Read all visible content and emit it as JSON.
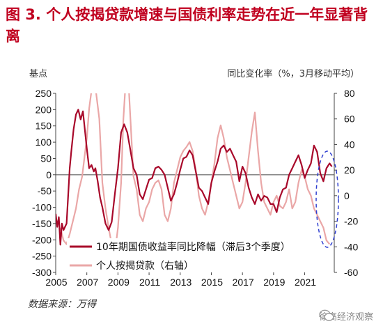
{
  "title": "图 3. 个人按揭贷款增速与国债利率走势在近一年显著背离",
  "source": "数据来源：万得",
  "watermark": "徐高经济观察",
  "watermark_icon": "wechat-icon",
  "colors": {
    "title": "#c0001f",
    "series_rate": "#a8082a",
    "series_loan": "#eaa7a7",
    "highlight": "#2f3fd0"
  },
  "chart_data": {
    "type": "line",
    "left_unit": "基点",
    "right_unit": "同比变化率（%，3月移动平均）",
    "x_ticks": [
      "2005",
      "2007",
      "2009",
      "2011",
      "2013",
      "2015",
      "2017",
      "2019",
      "2021"
    ],
    "xlim": [
      2005,
      2022.9
    ],
    "ylim_left": [
      -300,
      250
    ],
    "yticks_left": [
      250,
      200,
      150,
      100,
      50,
      0,
      -50,
      -100,
      -150,
      -200,
      -250,
      -300
    ],
    "ylim_right": [
      -60,
      80
    ],
    "yticks_right": [
      80,
      60,
      40,
      20,
      0,
      -20,
      -40,
      -60
    ],
    "grid": false,
    "legend_position": "bottom-center",
    "series": [
      {
        "name": "10年期国债收益率同比降幅（滞后3个季度）",
        "axis": "left",
        "x": [
          2005.0,
          2005.1,
          2005.2,
          2005.3,
          2005.4,
          2005.5,
          2005.7,
          2005.9,
          2006.0,
          2006.15,
          2006.3,
          2006.45,
          2006.6,
          2006.75,
          2006.9,
          2007.0,
          2007.15,
          2007.3,
          2007.45,
          2007.55,
          2007.7,
          2007.85,
          2008.0,
          2008.2,
          2008.4,
          2008.6,
          2008.8,
          2009.0,
          2009.2,
          2009.4,
          2009.6,
          2009.8,
          2010.0,
          2010.2,
          2010.4,
          2010.6,
          2010.8,
          2011.0,
          2011.2,
          2011.4,
          2011.6,
          2011.8,
          2012.0,
          2012.2,
          2012.4,
          2012.6,
          2012.8,
          2013.0,
          2013.2,
          2013.4,
          2013.6,
          2013.8,
          2014.0,
          2014.2,
          2014.4,
          2014.6,
          2014.8,
          2015.0,
          2015.2,
          2015.4,
          2015.6,
          2015.8,
          2016.0,
          2016.2,
          2016.4,
          2016.6,
          2016.8,
          2017.0,
          2017.2,
          2017.4,
          2017.6,
          2017.8,
          2018.0,
          2018.2,
          2018.4,
          2018.6,
          2018.8,
          2019.0,
          2019.2,
          2019.4,
          2019.6,
          2019.8,
          2020.0,
          2020.2,
          2020.4,
          2020.6,
          2020.8,
          2021.0,
          2021.2,
          2021.4,
          2021.6,
          2021.8,
          2022.0,
          2022.2,
          2022.4,
          2022.6,
          2022.75
        ],
        "values": [
          -120,
          -160,
          -130,
          -215,
          -150,
          -170,
          -150,
          20,
          70,
          140,
          185,
          200,
          170,
          195,
          125,
          80,
          20,
          30,
          10,
          20,
          -20,
          -70,
          -100,
          -150,
          -170,
          -145,
          -60,
          20,
          130,
          155,
          130,
          75,
          20,
          0,
          -60,
          -75,
          -45,
          -15,
          -10,
          20,
          25,
          15,
          0,
          -40,
          -80,
          -60,
          -25,
          15,
          50,
          55,
          75,
          60,
          10,
          -40,
          -50,
          -70,
          -90,
          -25,
          10,
          40,
          80,
          90,
          70,
          80,
          60,
          40,
          -20,
          25,
          5,
          -40,
          -70,
          -90,
          -60,
          -80,
          -65,
          -70,
          -90,
          -90,
          -115,
          -70,
          -45,
          -40,
          0,
          20,
          40,
          60,
          30,
          -10,
          15,
          35,
          90,
          70,
          5,
          -20,
          20,
          35,
          25
        ]
      },
      {
        "name": "个人按揭贷款（右轴）",
        "axis": "right",
        "x": [
          2005.3,
          2005.5,
          2005.7,
          2005.9,
          2006.1,
          2006.3,
          2006.5,
          2006.7,
          2006.85,
          2007.0,
          2007.15,
          2007.3,
          2007.45,
          2007.6,
          2007.8,
          2008.0,
          2008.2,
          2008.4,
          2008.6,
          2008.8,
          2009.0,
          2009.2,
          2009.35,
          2009.5,
          2009.65,
          2009.8,
          2010.0,
          2010.2,
          2010.4,
          2010.6,
          2010.8,
          2011.0,
          2011.2,
          2011.4,
          2011.6,
          2011.8,
          2012.0,
          2012.2,
          2012.4,
          2012.6,
          2012.8,
          2013.0,
          2013.2,
          2013.4,
          2013.6,
          2013.8,
          2014.0,
          2014.2,
          2014.4,
          2014.6,
          2014.8,
          2015.0,
          2015.2,
          2015.4,
          2015.6,
          2015.8,
          2016.0,
          2016.2,
          2016.4,
          2016.6,
          2016.8,
          2017.0,
          2017.2,
          2017.4,
          2017.6,
          2017.8,
          2018.0,
          2018.2,
          2018.4,
          2018.6,
          2018.8,
          2019.0,
          2019.2,
          2019.4,
          2019.6,
          2019.8,
          2020.0,
          2020.2,
          2020.4,
          2020.6,
          2020.8,
          2021.0,
          2021.2,
          2021.4,
          2021.6,
          2021.8,
          2022.0,
          2022.2,
          2022.4,
          2022.6
        ],
        "values": [
          -25,
          -35,
          -38,
          -30,
          -20,
          -10,
          5,
          15,
          30,
          45,
          68,
          82,
          85,
          80,
          60,
          10,
          -10,
          -25,
          -38,
          -45,
          -25,
          10,
          60,
          90,
          95,
          60,
          15,
          5,
          -15,
          -20,
          -10,
          -5,
          5,
          10,
          12,
          5,
          -15,
          -20,
          -10,
          10,
          20,
          30,
          35,
          38,
          42,
          35,
          20,
          0,
          -10,
          -15,
          -5,
          10,
          25,
          45,
          55,
          45,
          30,
          20,
          10,
          0,
          -10,
          -5,
          10,
          30,
          50,
          65,
          35,
          10,
          -5,
          -10,
          -15,
          -5,
          0,
          -8,
          -10,
          -5,
          5,
          -10,
          -5,
          10,
          20,
          15,
          5,
          0,
          -10,
          -15,
          -20,
          -25,
          -35,
          -38
        ]
      }
    ]
  }
}
